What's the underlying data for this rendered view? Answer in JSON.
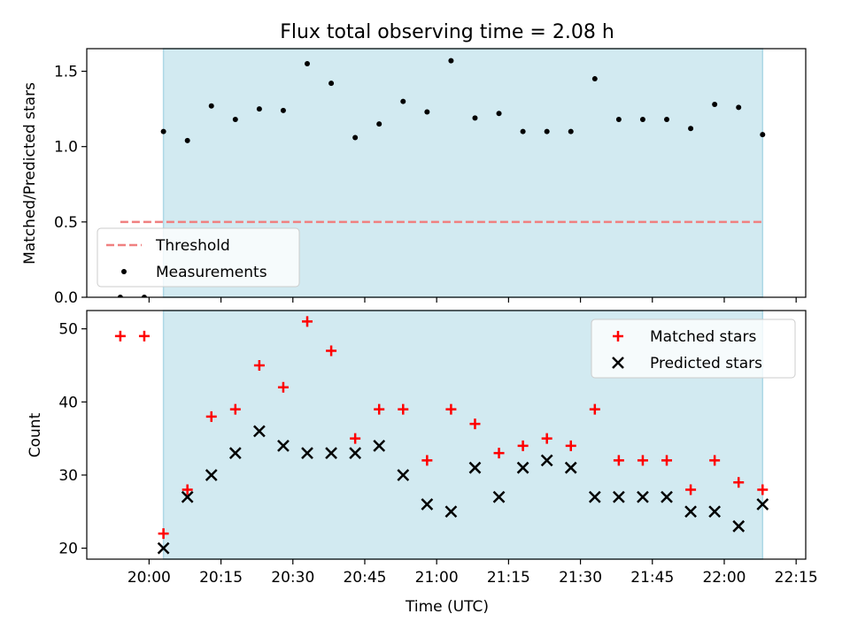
{
  "title": "Flux total observing time = 2.08 h",
  "colors": {
    "span": "#add8e6",
    "threshold": "#f08080",
    "matched": "#ff0000",
    "predicted": "#000000",
    "measurement": "#000000"
  },
  "chart_data": [
    {
      "type": "scatter",
      "name": "ratio-panel",
      "ylabel": "Matched/Predicted stars",
      "xlim": [
        "19:47",
        "22:17"
      ],
      "ylim": [
        0,
        1.65
      ],
      "yticks": [
        "0.0",
        "0.5",
        "1.0",
        "1.5"
      ],
      "ytick_values": [
        0,
        0.5,
        1.0,
        1.5
      ],
      "observing_span": [
        "20:03",
        "22:08"
      ],
      "legend": {
        "placement": "lower-left",
        "entries": [
          "Threshold",
          "Measurements"
        ]
      },
      "threshold": {
        "name": "Threshold",
        "y": 0.5,
        "x_range": [
          "19:54",
          "22:08"
        ]
      },
      "series": [
        {
          "name": "Measurements",
          "x": [
            "19:54",
            "19:59",
            "20:03",
            "20:08",
            "20:13",
            "20:18",
            "20:23",
            "20:28",
            "20:33",
            "20:38",
            "20:43",
            "20:48",
            "20:53",
            "20:58",
            "21:03",
            "21:08",
            "21:13",
            "21:18",
            "21:23",
            "21:28",
            "21:33",
            "21:38",
            "21:43",
            "21:48",
            "21:53",
            "21:58",
            "22:03",
            "22:08"
          ],
          "values": [
            0.0,
            0.0,
            1.1,
            1.04,
            1.27,
            1.18,
            1.25,
            1.24,
            1.55,
            1.42,
            1.06,
            1.15,
            1.3,
            1.23,
            1.57,
            1.19,
            1.22,
            1.1,
            1.1,
            1.1,
            1.45,
            1.18,
            1.18,
            1.18,
            1.12,
            1.28,
            1.26,
            1.08
          ]
        }
      ]
    },
    {
      "type": "scatter",
      "name": "count-panel",
      "ylabel": "Count",
      "xlabel": "Time (UTC)",
      "xlim": [
        "19:47",
        "22:17"
      ],
      "ylim": [
        18.5,
        52.5
      ],
      "yticks": [
        "20",
        "30",
        "40",
        "50"
      ],
      "ytick_values": [
        20,
        30,
        40,
        50
      ],
      "xticks": [
        "20:00",
        "20:15",
        "20:30",
        "20:45",
        "21:00",
        "21:15",
        "21:30",
        "21:45",
        "22:00",
        "22:15"
      ],
      "observing_span": [
        "20:03",
        "22:08"
      ],
      "legend": {
        "placement": "top-right",
        "entries": [
          "Matched stars",
          "Predicted stars"
        ]
      },
      "series": [
        {
          "name": "Matched stars",
          "marker": "+",
          "x": [
            "19:54",
            "19:59",
            "20:03",
            "20:08",
            "20:13",
            "20:18",
            "20:23",
            "20:28",
            "20:33",
            "20:38",
            "20:43",
            "20:48",
            "20:53",
            "20:58",
            "21:03",
            "21:08",
            "21:13",
            "21:18",
            "21:23",
            "21:28",
            "21:33",
            "21:38",
            "21:43",
            "21:48",
            "21:53",
            "21:58",
            "22:03",
            "22:08"
          ],
          "values": [
            49,
            49,
            22,
            28,
            38,
            39,
            45,
            42,
            51,
            47,
            35,
            39,
            39,
            32,
            39,
            37,
            33,
            34,
            35,
            34,
            39,
            32,
            32,
            32,
            28,
            32,
            29,
            28
          ]
        },
        {
          "name": "Predicted stars",
          "marker": "x",
          "x": [
            "20:03",
            "20:08",
            "20:13",
            "20:18",
            "20:23",
            "20:28",
            "20:33",
            "20:38",
            "20:43",
            "20:48",
            "20:53",
            "20:58",
            "21:03",
            "21:08",
            "21:13",
            "21:18",
            "21:23",
            "21:28",
            "21:33",
            "21:38",
            "21:43",
            "21:48",
            "21:53",
            "21:58",
            "22:03",
            "22:08"
          ],
          "values": [
            20,
            27,
            30,
            33,
            36,
            34,
            33,
            33,
            33,
            34,
            30,
            26,
            25,
            31,
            27,
            31,
            32,
            31,
            27,
            27,
            27,
            27,
            25,
            25,
            23,
            26
          ]
        }
      ]
    }
  ]
}
